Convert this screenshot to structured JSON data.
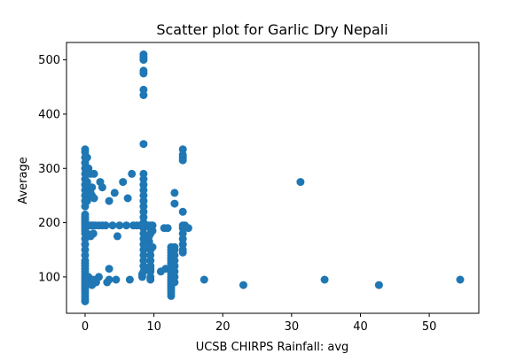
{
  "chart_data": {
    "type": "scatter",
    "title": "Scatter plot for Garlic Dry Nepali",
    "xlabel": "UCSB CHIRPS Rainfall: avg",
    "ylabel": "Average",
    "xlim": [
      -2.7,
      57.2
    ],
    "ylim": [
      33,
      532
    ],
    "xticks": [
      0,
      10,
      20,
      30,
      40,
      50
    ],
    "yticks": [
      100,
      200,
      300,
      400,
      500
    ],
    "grid": false,
    "legend": "none",
    "marker_color": "#1f77b4",
    "series": [
      {
        "points": [
          [
            0,
            55
          ],
          [
            0,
            60
          ],
          [
            0,
            65
          ],
          [
            0,
            70
          ],
          [
            0,
            75
          ],
          [
            0,
            80
          ],
          [
            0,
            85
          ],
          [
            0,
            90
          ],
          [
            0,
            95
          ],
          [
            0,
            100
          ],
          [
            0,
            105
          ],
          [
            0,
            110
          ],
          [
            0,
            115
          ],
          [
            0,
            120
          ],
          [
            0,
            125
          ],
          [
            0,
            130
          ],
          [
            0,
            140
          ],
          [
            0,
            150
          ],
          [
            0,
            160
          ],
          [
            0,
            170
          ],
          [
            0,
            180
          ],
          [
            0,
            185
          ],
          [
            0,
            190
          ],
          [
            0,
            195
          ],
          [
            0,
            200
          ],
          [
            0,
            205
          ],
          [
            0,
            210
          ],
          [
            0,
            215
          ],
          [
            0,
            230
          ],
          [
            0,
            240
          ],
          [
            0,
            250
          ],
          [
            0,
            260
          ],
          [
            0,
            270
          ],
          [
            0,
            280
          ],
          [
            0,
            290
          ],
          [
            0,
            300
          ],
          [
            0,
            310
          ],
          [
            0,
            320
          ],
          [
            0,
            330
          ],
          [
            0,
            335
          ],
          [
            0.3,
            90
          ],
          [
            0.3,
            180
          ],
          [
            0.3,
            240
          ],
          [
            0.3,
            275
          ],
          [
            0.3,
            320
          ],
          [
            0.5,
            100
          ],
          [
            0.5,
            195
          ],
          [
            0.5,
            260
          ],
          [
            0.5,
            300
          ],
          [
            0.8,
            95
          ],
          [
            0.8,
            175
          ],
          [
            0.8,
            195
          ],
          [
            0.8,
            255
          ],
          [
            0.8,
            290
          ],
          [
            1,
            85
          ],
          [
            1,
            195
          ],
          [
            1,
            250
          ],
          [
            1,
            265
          ],
          [
            1.2,
            95
          ],
          [
            1.2,
            180
          ],
          [
            1.2,
            195
          ],
          [
            1.3,
            245
          ],
          [
            1.3,
            290
          ],
          [
            1.5,
            195
          ],
          [
            1.6,
            90
          ],
          [
            2,
            195
          ],
          [
            2,
            100
          ],
          [
            2.2,
            275
          ],
          [
            2.5,
            195
          ],
          [
            2.5,
            265
          ],
          [
            3,
            195
          ],
          [
            3.2,
            90
          ],
          [
            3.5,
            95
          ],
          [
            3.5,
            115
          ],
          [
            3.5,
            240
          ],
          [
            4,
            195
          ],
          [
            4.3,
            255
          ],
          [
            4.5,
            95
          ],
          [
            4.7,
            175
          ],
          [
            5,
            195
          ],
          [
            5.5,
            275
          ],
          [
            6,
            195
          ],
          [
            6.2,
            245
          ],
          [
            6.5,
            95
          ],
          [
            6.8,
            290
          ],
          [
            7,
            195
          ],
          [
            7.5,
            195
          ],
          [
            8,
            195
          ],
          [
            8.3,
            100
          ],
          [
            8.3,
            105
          ],
          [
            8.5,
            110
          ],
          [
            8.5,
            120
          ],
          [
            8.5,
            130
          ],
          [
            8.5,
            140
          ],
          [
            8.5,
            150
          ],
          [
            8.5,
            160
          ],
          [
            8.5,
            170
          ],
          [
            8.5,
            180
          ],
          [
            8.5,
            190
          ],
          [
            8.5,
            200
          ],
          [
            8.5,
            210
          ],
          [
            8.5,
            220
          ],
          [
            8.5,
            230
          ],
          [
            8.5,
            240
          ],
          [
            8.5,
            250
          ],
          [
            8.5,
            260
          ],
          [
            8.5,
            270
          ],
          [
            8.5,
            280
          ],
          [
            8.5,
            290
          ],
          [
            8.5,
            345
          ],
          [
            8.5,
            435
          ],
          [
            8.5,
            445
          ],
          [
            8.5,
            475
          ],
          [
            8.5,
            480
          ],
          [
            8.5,
            500
          ],
          [
            8.5,
            505
          ],
          [
            8.5,
            510
          ],
          [
            8.8,
            195
          ],
          [
            9.2,
            195
          ],
          [
            9.3,
            165
          ],
          [
            9.3,
            175
          ],
          [
            9.5,
            95
          ],
          [
            9.5,
            100
          ],
          [
            9.5,
            110
          ],
          [
            9.5,
            115
          ],
          [
            9.5,
            120
          ],
          [
            9.5,
            130
          ],
          [
            9.5,
            140
          ],
          [
            9.5,
            150
          ],
          [
            9.5,
            155
          ],
          [
            9.5,
            180
          ],
          [
            9.5,
            190
          ],
          [
            9.5,
            195
          ],
          [
            9.8,
            155
          ],
          [
            9.8,
            185
          ],
          [
            9.8,
            195
          ],
          [
            11,
            110
          ],
          [
            11.5,
            190
          ],
          [
            11.7,
            115
          ],
          [
            12,
            190
          ],
          [
            12.5,
            65
          ],
          [
            12.5,
            70
          ],
          [
            12.5,
            75
          ],
          [
            12.5,
            80
          ],
          [
            12.5,
            85
          ],
          [
            12.5,
            90
          ],
          [
            12.5,
            95
          ],
          [
            12.5,
            100
          ],
          [
            12.5,
            105
          ],
          [
            12.5,
            110
          ],
          [
            12.5,
            115
          ],
          [
            12.5,
            120
          ],
          [
            12.5,
            125
          ],
          [
            12.5,
            130
          ],
          [
            12.5,
            135
          ],
          [
            12.5,
            140
          ],
          [
            12.5,
            145
          ],
          [
            12.5,
            150
          ],
          [
            12.5,
            155
          ],
          [
            13,
            90
          ],
          [
            13,
            100
          ],
          [
            13,
            110
          ],
          [
            13,
            120
          ],
          [
            13,
            130
          ],
          [
            13,
            140
          ],
          [
            13,
            150
          ],
          [
            13,
            155
          ],
          [
            13,
            235
          ],
          [
            13,
            255
          ],
          [
            14.2,
            145
          ],
          [
            14.2,
            150
          ],
          [
            14.2,
            160
          ],
          [
            14.2,
            170
          ],
          [
            14.2,
            180
          ],
          [
            14.2,
            190
          ],
          [
            14.2,
            195
          ],
          [
            14.2,
            220
          ],
          [
            14.2,
            315
          ],
          [
            14.2,
            320
          ],
          [
            14.2,
            325
          ],
          [
            14.2,
            335
          ],
          [
            14.5,
            195
          ],
          [
            15,
            190
          ],
          [
            17.3,
            95
          ],
          [
            23,
            85
          ],
          [
            31.3,
            275
          ],
          [
            34.8,
            95
          ],
          [
            42.7,
            85
          ],
          [
            54.5,
            95
          ]
        ]
      }
    ]
  }
}
